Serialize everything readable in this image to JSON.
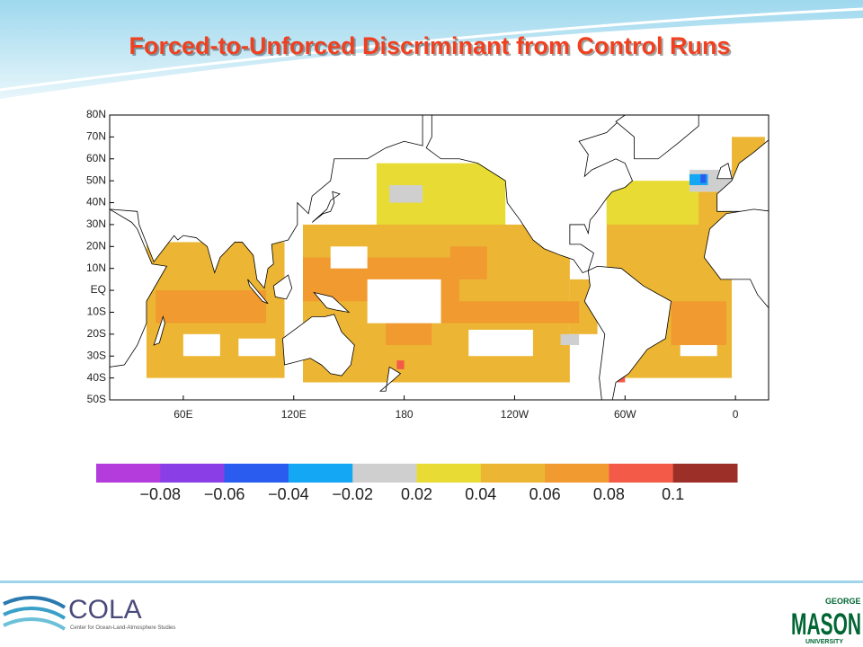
{
  "header": {
    "title": "Forced-to-Unforced Discriminant from Control Runs"
  },
  "map": {
    "xlim": [
      20,
      378
    ],
    "ylim": [
      -50,
      80
    ],
    "xticks": [
      {
        "value": 60,
        "label": "60E"
      },
      {
        "value": 120,
        "label": "120E"
      },
      180,
      {
        "value": 240,
        "label": "120W"
      },
      {
        "value": 300,
        "label": "60W"
      },
      {
        "value": 360,
        "label": "0"
      }
    ],
    "yticks": [
      {
        "value": 80,
        "label": "80N"
      },
      {
        "value": 70,
        "label": "70N"
      },
      {
        "value": 60,
        "label": "60N"
      },
      {
        "value": 50,
        "label": "50N"
      },
      {
        "value": 40,
        "label": "40N"
      },
      {
        "value": 30,
        "label": "30N"
      },
      {
        "value": 20,
        "label": "20N"
      },
      {
        "value": 10,
        "label": "10N"
      },
      {
        "value": 0,
        "label": "EQ"
      },
      {
        "value": -10,
        "label": "10S"
      },
      {
        "value": -20,
        "label": "20S"
      },
      {
        "value": -30,
        "label": "30S"
      },
      {
        "value": -40,
        "label": "40S"
      },
      {
        "value": -50,
        "label": "50S"
      }
    ]
  },
  "colorbar": {
    "colors": [
      "#b43cdc",
      "#8a3ee6",
      "#2a5cf0",
      "#14a8f4",
      "#cfcfcf",
      "#e8dc34",
      "#ecb634",
      "#f09a30",
      "#f45a48",
      "#9c3028"
    ],
    "ticks": [
      {
        "value": -0.08,
        "label": "−0.08"
      },
      {
        "value": -0.06,
        "label": "−0.06"
      },
      {
        "value": -0.04,
        "label": "−0.04"
      },
      {
        "value": -0.02,
        "label": "−0.02"
      },
      0.02,
      0.04,
      0.06,
      0.08,
      0.1
    ]
  },
  "footer": {
    "cola": "COLA",
    "cola_sub": "Center for Ocean-Land-Atmosphere Studies",
    "gmu_top": "GEORGE",
    "gmu_main": "MASON",
    "gmu_bottom": "UNIVERSITY"
  }
}
